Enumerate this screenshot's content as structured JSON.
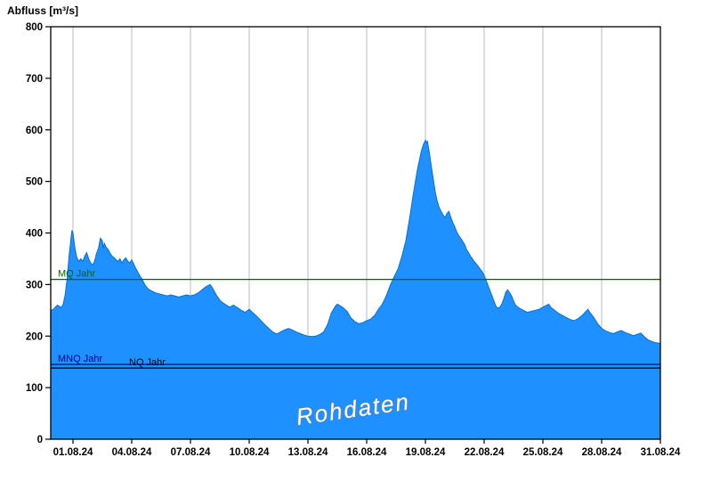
{
  "page": {
    "background": "#ffffff"
  },
  "chart_data": {
    "type": "area",
    "title": "Abfluss [m³/s]",
    "watermark": "Rohdaten",
    "xlabel": "",
    "ylabel": "Abfluss [m³/s]",
    "ylim": [
      0,
      800
    ],
    "yticks": [
      0,
      100,
      200,
      300,
      400,
      500,
      600,
      700,
      800
    ],
    "xticks": [
      {
        "day": 1,
        "label": "01.08.24"
      },
      {
        "day": 4,
        "label": "04.08.24"
      },
      {
        "day": 7,
        "label": "07.08.24"
      },
      {
        "day": 10,
        "label": "10.08.24"
      },
      {
        "day": 13,
        "label": "13.08.24"
      },
      {
        "day": 16,
        "label": "16.08.24"
      },
      {
        "day": 19,
        "label": "19.08.24"
      },
      {
        "day": 22,
        "label": "22.08.24"
      },
      {
        "day": 25,
        "label": "25.08.24"
      },
      {
        "day": 28,
        "label": "28.08.24"
      },
      {
        "day": 31,
        "label": "31.08.24"
      }
    ],
    "grid": "vertical-only",
    "legend": "none",
    "colors": {
      "area_fill": "#1E90FF",
      "area_stroke": "#0B6FCC",
      "grid": "#bbbbbb",
      "axis": "#000000",
      "watermark_fill": "#ffffff",
      "watermark_outline": "#8c8c8c"
    },
    "reference_lines": [
      {
        "id": "mq",
        "label": "MQ Jahr",
        "value": 310,
        "color": "#006400",
        "label_dx": 8
      },
      {
        "id": "mnq",
        "label": "MNQ Jahr",
        "value": 145,
        "color": "#00008B",
        "label_dx": 8
      },
      {
        "id": "nq",
        "label": "NQ Jahr",
        "value": 138,
        "color": "#000000",
        "label_dx": 88
      }
    ],
    "series": [
      {
        "name": "Abfluss Rohdaten",
        "x": [
          -0.14,
          0.0,
          0.1,
          0.2,
          0.3,
          0.4,
          0.5,
          0.6,
          0.7,
          0.8,
          0.9,
          0.95,
          1.0,
          1.05,
          1.1,
          1.2,
          1.3,
          1.4,
          1.5,
          1.6,
          1.7,
          1.8,
          1.9,
          2.0,
          2.1,
          2.2,
          2.3,
          2.4,
          2.5,
          2.55,
          2.6,
          2.7,
          2.8,
          2.9,
          3.0,
          3.1,
          3.2,
          3.3,
          3.4,
          3.5,
          3.6,
          3.7,
          3.8,
          3.9,
          4.0,
          4.1,
          4.2,
          4.3,
          4.4,
          4.5,
          4.6,
          4.7,
          4.8,
          4.9,
          5.0,
          5.2,
          5.4,
          5.6,
          5.8,
          6.0,
          6.2,
          6.4,
          6.6,
          6.8,
          7.0,
          7.2,
          7.4,
          7.6,
          7.8,
          8.0,
          8.1,
          8.2,
          8.3,
          8.4,
          8.5,
          8.6,
          8.8,
          9.0,
          9.2,
          9.4,
          9.6,
          9.8,
          10.0,
          10.2,
          10.4,
          10.6,
          10.8,
          11.0,
          11.2,
          11.4,
          11.6,
          11.8,
          12.0,
          12.2,
          12.4,
          12.6,
          12.8,
          13.0,
          13.2,
          13.4,
          13.6,
          13.8,
          14.0,
          14.2,
          14.4,
          14.5,
          14.6,
          14.8,
          15.0,
          15.2,
          15.4,
          15.6,
          15.8,
          16.0,
          16.2,
          16.4,
          16.6,
          16.8,
          17.0,
          17.2,
          17.4,
          17.6,
          17.8,
          18.0,
          18.2,
          18.4,
          18.6,
          18.8,
          18.9,
          19.0,
          19.05,
          19.1,
          19.2,
          19.3,
          19.4,
          19.5,
          19.6,
          19.7,
          19.8,
          19.9,
          20.0,
          20.1,
          20.2,
          20.3,
          20.4,
          20.5,
          20.6,
          20.7,
          20.8,
          20.9,
          21.0,
          21.1,
          21.2,
          21.3,
          21.4,
          21.5,
          21.6,
          21.7,
          21.8,
          21.9,
          22.0,
          22.1,
          22.2,
          22.3,
          22.4,
          22.5,
          22.6,
          22.7,
          22.8,
          22.9,
          23.0,
          23.1,
          23.2,
          23.3,
          23.4,
          23.5,
          23.6,
          23.8,
          24.0,
          24.2,
          24.4,
          24.6,
          24.8,
          25.0,
          25.2,
          25.3,
          25.4,
          25.6,
          25.8,
          26.0,
          26.2,
          26.4,
          26.6,
          26.8,
          27.0,
          27.2,
          27.3,
          27.4,
          27.6,
          27.8,
          28.0,
          28.2,
          28.4,
          28.6,
          28.8,
          29.0,
          29.2,
          29.4,
          29.6,
          29.8,
          30.0,
          30.2,
          30.4,
          30.6,
          30.8,
          31.0
        ],
        "values": [
          250,
          252,
          256,
          260,
          258,
          255,
          262,
          280,
          310,
          355,
          390,
          405,
          400,
          385,
          370,
          352,
          345,
          350,
          345,
          355,
          362,
          350,
          342,
          338,
          345,
          360,
          370,
          390,
          385,
          370,
          380,
          372,
          368,
          360,
          355,
          352,
          348,
          345,
          350,
          342,
          348,
          352,
          345,
          342,
          348,
          340,
          332,
          325,
          318,
          312,
          305,
          298,
          293,
          290,
          288,
          284,
          282,
          280,
          278,
          280,
          278,
          276,
          278,
          280,
          278,
          280,
          284,
          290,
          296,
          300,
          295,
          288,
          281,
          275,
          270,
          266,
          261,
          256,
          260,
          255,
          250,
          246,
          252,
          245,
          238,
          230,
          222,
          215,
          208,
          204,
          208,
          212,
          215,
          212,
          208,
          205,
          202,
          200,
          199,
          200,
          203,
          208,
          222,
          245,
          258,
          262,
          260,
          255,
          248,
          235,
          228,
          224,
          226,
          230,
          233,
          240,
          252,
          262,
          278,
          298,
          315,
          330,
          355,
          385,
          430,
          480,
          525,
          560,
          572,
          580,
          575,
          578,
          556,
          530,
          505,
          480,
          462,
          450,
          442,
          435,
          430,
          438,
          442,
          430,
          420,
          412,
          402,
          395,
          390,
          384,
          378,
          368,
          362,
          355,
          350,
          344,
          340,
          335,
          330,
          325,
          318,
          308,
          298,
          288,
          278,
          268,
          258,
          254,
          256,
          262,
          272,
          285,
          290,
          284,
          278,
          268,
          260,
          254,
          250,
          246,
          248,
          250,
          252,
          256,
          260,
          262,
          256,
          250,
          244,
          240,
          236,
          232,
          230,
          234,
          240,
          248,
          252,
          246,
          236,
          224,
          215,
          210,
          207,
          205,
          208,
          211,
          207,
          204,
          201,
          203,
          206,
          198,
          192,
          189,
          187,
          186
        ]
      }
    ]
  }
}
